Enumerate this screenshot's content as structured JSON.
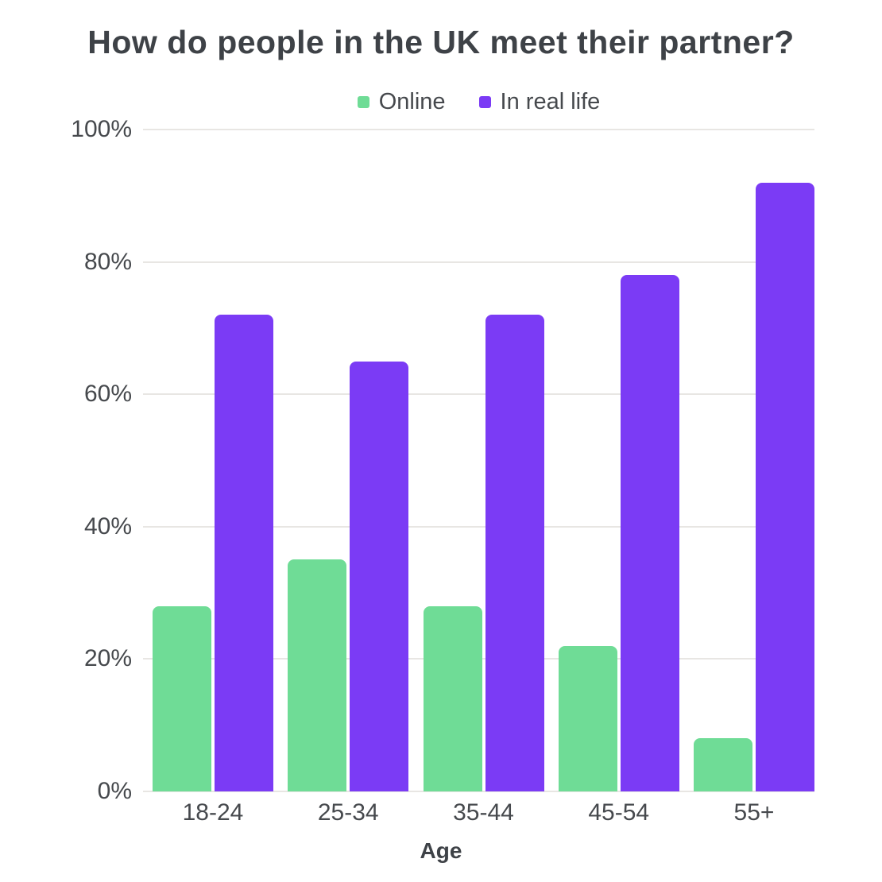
{
  "chart_data": {
    "type": "bar",
    "title": "How do people in the UK meet their partner?",
    "xlabel": "Age",
    "ylabel": "",
    "categories": [
      "18-24",
      "25-34",
      "35-44",
      "45-54",
      "55+"
    ],
    "series": [
      {
        "name": "Online",
        "color": "#6FDC96",
        "values": [
          28,
          35,
          28,
          22,
          8
        ]
      },
      {
        "name": "In real life",
        "color": "#7B3BF5",
        "values": [
          72,
          65,
          72,
          78,
          92
        ]
      }
    ],
    "ylim": [
      0,
      100
    ],
    "yticks": [
      {
        "value": 0,
        "label": "0%"
      },
      {
        "value": 20,
        "label": "20%"
      },
      {
        "value": 40,
        "label": "40%"
      },
      {
        "value": 60,
        "label": "60%"
      },
      {
        "value": 80,
        "label": "80%"
      },
      {
        "value": 100,
        "label": "100%"
      }
    ],
    "grid": true,
    "legend_position": "top"
  },
  "colors": {
    "title_text": "#3E4247",
    "tick_text": "#46494D",
    "gridline": "#E8E6E3",
    "background": "#FFFFFF"
  }
}
